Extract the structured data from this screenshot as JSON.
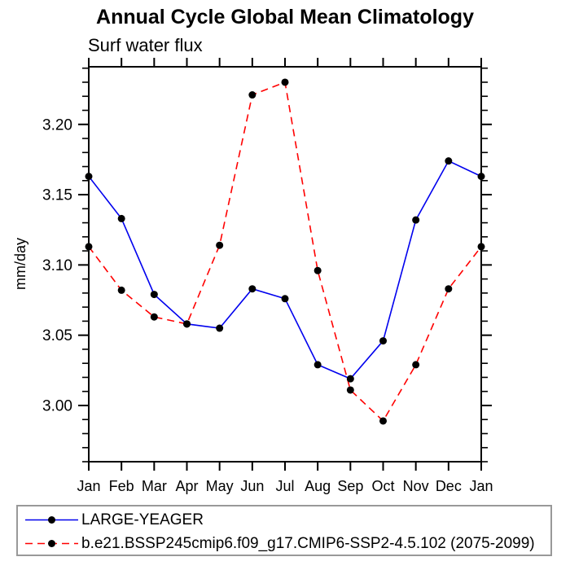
{
  "page": {
    "background": "#ffffff",
    "text_color": "#000000"
  },
  "chart_data": {
    "type": "line",
    "title": "Annual Cycle Global Mean Climatology",
    "subtitle": "Surf water flux",
    "ylabel": "mm/day",
    "xlabel": "",
    "categories": [
      "Jan",
      "Feb",
      "Mar",
      "Apr",
      "May",
      "Jun",
      "Jul",
      "Aug",
      "Sep",
      "Oct",
      "Nov",
      "Dec",
      "Jan"
    ],
    "series": [
      {
        "name": "LARGE-YEAGER",
        "color": "#0000ee",
        "line_style": "solid",
        "values": [
          3.163,
          3.133,
          3.079,
          3.058,
          3.055,
          3.083,
          3.076,
          3.029,
          3.019,
          3.046,
          3.132,
          3.174,
          3.163
        ]
      },
      {
        "name": "b.e21.BSSP245cmip6.f09_g17.CMIP6-SSP2-4.5.102 (2075-2099)",
        "color": "#ff0000",
        "line_style": "dashed",
        "values": [
          3.113,
          3.082,
          3.063,
          3.058,
          3.114,
          3.221,
          3.23,
          3.096,
          3.011,
          2.989,
          3.029,
          3.083,
          3.113
        ]
      }
    ],
    "marker": {
      "shape": "filled-circle",
      "color": "#000000",
      "radius": 4.5
    },
    "ylim": [
      2.96,
      3.241
    ],
    "yticks_major": [
      3.0,
      3.05,
      3.1,
      3.15,
      3.2
    ],
    "ytick_labels": [
      "3.00",
      "3.05",
      "3.10",
      "3.15",
      "3.20"
    ],
    "yminor_step": 0.01,
    "grid": false,
    "axis_color": "#000000",
    "legend_position": "bottom",
    "legend_border_color": "#999999"
  }
}
